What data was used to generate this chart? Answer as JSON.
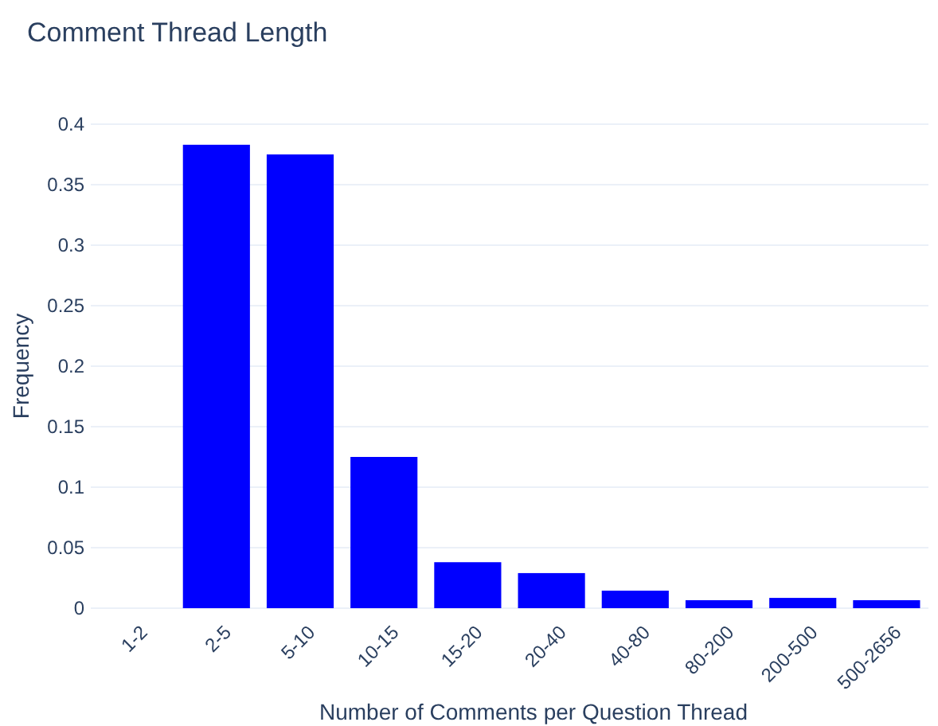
{
  "chart_data": {
    "type": "bar",
    "title": "Comment Thread Length",
    "xlabel": "Number of Comments per Question Thread",
    "ylabel": "Frequency",
    "categories": [
      "1-2",
      "2-5",
      "5-10",
      "10-15",
      "15-20",
      "20-40",
      "40-80",
      "80-200",
      "200-500",
      "500-2656"
    ],
    "values": [
      0,
      0.383,
      0.375,
      0.125,
      0.038,
      0.029,
      0.0145,
      0.0066,
      0.0085,
      0.0066
    ],
    "color": "#0000ff",
    "ylim": [
      0,
      0.4
    ],
    "yticks": [
      0,
      0.05,
      0.1,
      0.15,
      0.2,
      0.25,
      0.3,
      0.35,
      0.4
    ],
    "grid": "y"
  }
}
